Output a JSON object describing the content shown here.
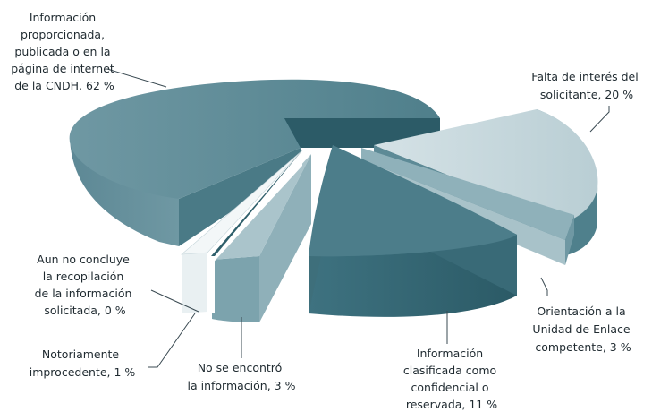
{
  "chart_data": {
    "type": "pie",
    "style": "3d-exploded",
    "title": "",
    "slices": [
      {
        "label": "Información proporcionada, publicada o en la página de internet de la CNDH, 62 %",
        "value": 62,
        "color": "#5b8a97"
      },
      {
        "label": "Falta de interés del solicitante, 20 %",
        "value": 20,
        "color": "#c6d7dc"
      },
      {
        "label": "Orientación a la Unidad de Enlace competente, 3 %",
        "value": 3,
        "color": "#8fb1ba"
      },
      {
        "label": "Información clasificada como confidencial o reservada, 11 %",
        "value": 11,
        "color": "#4c7d8a"
      },
      {
        "label": "No se encontró la información, 3 %",
        "value": 3,
        "color": "#9db9c1"
      },
      {
        "label": "Notoriamente improcedente, 1 %",
        "value": 1,
        "color": "#ecf2f4"
      },
      {
        "label": "Aun no concluye la recopilación de la información solicitada, 0 %",
        "value": 0,
        "color": "#2f5f6b"
      }
    ]
  },
  "labels": {
    "informacion_proporcionada": [
      "Información",
      "proporcionada,",
      "publicada o en la",
      "página de internet",
      "de la CNDH, 62 %"
    ],
    "falta_interes": [
      "Falta de interés del",
      "solicitante, 20 %"
    ],
    "orientacion": [
      "Orientación a la",
      "Unidad de Enlace",
      "competente, 3 %"
    ],
    "clasificada": [
      "Información",
      "clasificada como",
      "confidencial o",
      "reservada, 11 %"
    ],
    "no_encontro": [
      "No se encontró",
      "la información, 3 %"
    ],
    "notoriamente": [
      "Notoriamente",
      "improcedente, 1 %"
    ],
    "aun_no_concluye": [
      "Aun no concluye",
      "la recopilación",
      "de la información",
      "solicitada, 0 %"
    ]
  }
}
